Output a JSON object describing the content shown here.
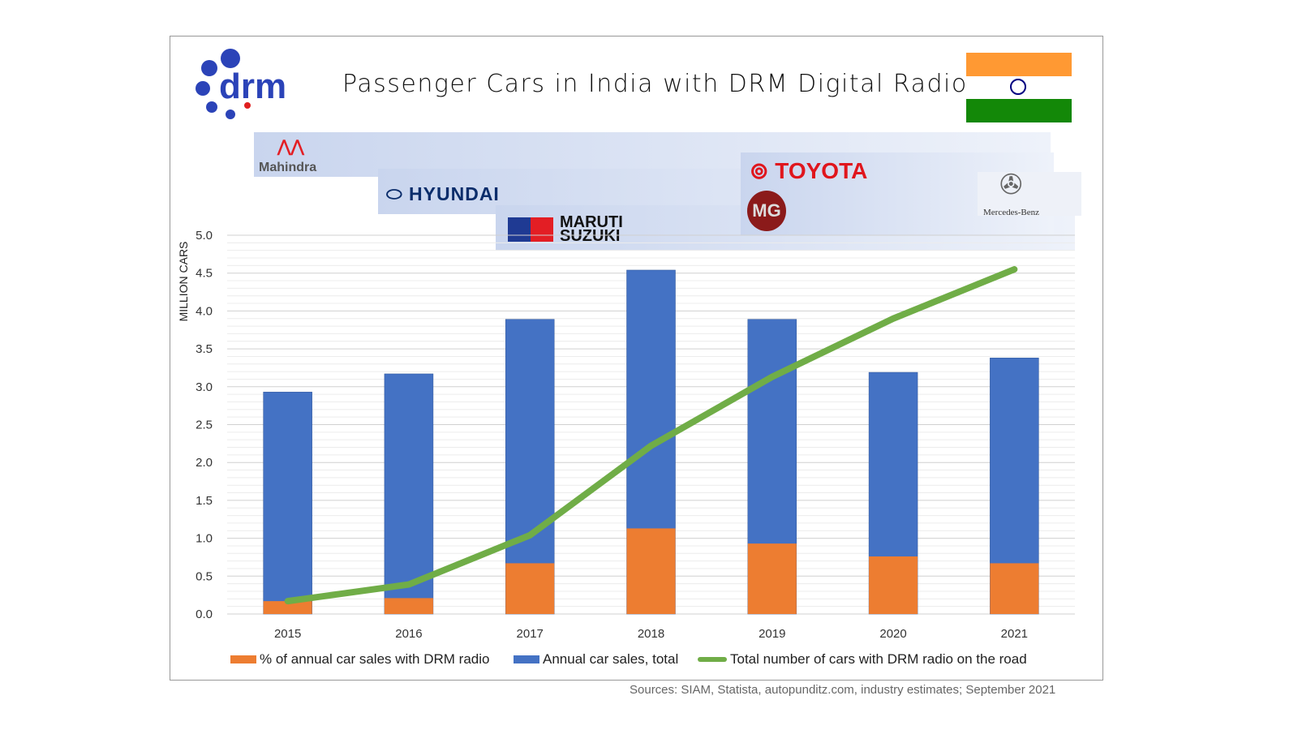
{
  "title": "Passenger Cars in India with DRM Digital Radio Bu",
  "logo": "drm",
  "brands": [
    "Mahindra",
    "HYUNDAI",
    "MARUTI SUZUKI",
    "TOYOTA",
    "MG",
    "Mercedes-Benz"
  ],
  "source": "Sources: SIAM, Statista, autopunditz.com,  industry estimates; September 2021",
  "colors": {
    "orange": "#ed7d31",
    "blue": "#4472c4",
    "green": "#70ad47",
    "flag_saffron": "#ff9933",
    "flag_green": "#138808",
    "chakra": "#000080"
  },
  "chart_data": {
    "type": "bar",
    "stacked": "overlay",
    "categories": [
      "2015",
      "2016",
      "2017",
      "2018",
      "2019",
      "2020",
      "2021"
    ],
    "ylabel": "MILLION CARS",
    "ylim": [
      0,
      5.0
    ],
    "yticks": [
      "0.0",
      "0.5",
      "1.0",
      "1.5",
      "2.0",
      "2.5",
      "3.0",
      "3.5",
      "4.0",
      "4.5",
      "5.0"
    ],
    "grid": true,
    "legend_position": "bottom",
    "series": [
      {
        "name": "% of annual car sales with DRM radio",
        "type": "bar",
        "color": "#ed7d31",
        "values": [
          0.17,
          0.21,
          0.67,
          1.13,
          0.93,
          0.76,
          0.67
        ]
      },
      {
        "name": "Annual car sales, total",
        "type": "bar",
        "color": "#4472c4",
        "values": [
          2.93,
          3.17,
          3.89,
          4.54,
          3.89,
          3.19,
          3.38
        ]
      },
      {
        "name": "Total number of cars with DRM radio on the road",
        "type": "line",
        "color": "#70ad47",
        "values": [
          0.17,
          0.39,
          1.04,
          2.22,
          3.13,
          3.9,
          4.55
        ]
      }
    ]
  }
}
